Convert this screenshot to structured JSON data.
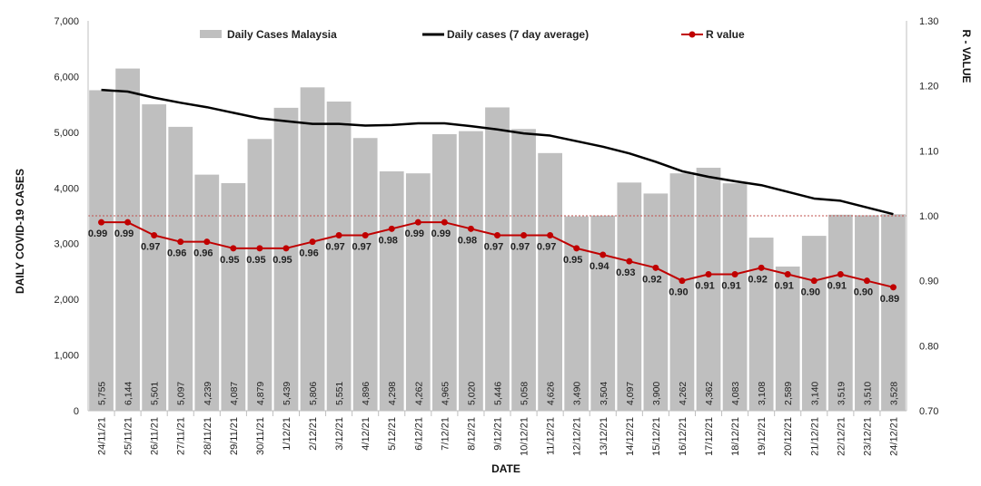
{
  "chart_data": {
    "type": "bar",
    "xlabel": "DATE",
    "ylabel": "DAILY COVID-19 CASES",
    "y2label": "R - VALUE",
    "ylim": [
      0,
      7000
    ],
    "y2lim": [
      0.7,
      1.3
    ],
    "y_ticks": [
      "0",
      "1,000",
      "2,000",
      "3,000",
      "4,000",
      "5,000",
      "6,000",
      "7,000"
    ],
    "y2_ticks": [
      "0.70",
      "0.80",
      "0.90",
      "1.00",
      "1.10",
      "1.20",
      "1.30"
    ],
    "legend_position": "top",
    "reference_line": 1.0,
    "colors": {
      "bars": "#bfbfbf",
      "average": "#000000",
      "r_value": "#c00000",
      "reference": "#c0504d"
    },
    "categories": [
      "24/11/21",
      "25/11/21",
      "26/11/21",
      "27/11/21",
      "28/11/21",
      "29/11/21",
      "30/11/21",
      "1/12/21",
      "2/12/21",
      "3/12/21",
      "4/12/21",
      "5/12/21",
      "6/12/21",
      "7/12/21",
      "8/12/21",
      "9/12/21",
      "10/12/21",
      "11/12/21",
      "12/12/21",
      "13/12/21",
      "14/12/21",
      "15/12/21",
      "16/12/21",
      "17/12/21",
      "18/12/21",
      "19/12/21",
      "20/12/21",
      "21/12/21",
      "22/12/21",
      "23/12/21",
      "24/12/21"
    ],
    "series": [
      {
        "name": "Daily Cases Malaysia",
        "type": "bar",
        "axis": "left",
        "values": [
          5755,
          6144,
          5501,
          5097,
          4239,
          4087,
          4879,
          5439,
          5806,
          5551,
          4896,
          4298,
          4262,
          4965,
          5020,
          5446,
          5058,
          4626,
          3490,
          3504,
          4097,
          3900,
          4262,
          4362,
          4083,
          3108,
          2589,
          3140,
          3519,
          3510,
          3528
        ],
        "labels": [
          "5,755",
          "6,144",
          "5,501",
          "5,097",
          "4,239",
          "4,087",
          "4,879",
          "5,439",
          "5,806",
          "5,551",
          "4,896",
          "4,298",
          "4,262",
          "4,965",
          "5,020",
          "5,446",
          "5,058",
          "4,626",
          "3,490",
          "3,504",
          "4,097",
          "3,900",
          "4,262",
          "4,362",
          "4,083",
          "3,108",
          "2,589",
          "3,140",
          "3,519",
          "3,510",
          "3,528"
        ]
      },
      {
        "name": "Daily cases (7 day average)",
        "type": "line",
        "axis": "left",
        "values": [
          5760,
          5730,
          5620,
          5530,
          5450,
          5350,
          5250,
          5200,
          5150,
          5150,
          5120,
          5130,
          5160,
          5160,
          5110,
          5050,
          4980,
          4940,
          4840,
          4740,
          4620,
          4470,
          4300,
          4200,
          4120,
          4050,
          3930,
          3810,
          3770,
          3650,
          3530
        ]
      },
      {
        "name": "R value",
        "type": "line",
        "axis": "right",
        "values": [
          0.99,
          0.99,
          0.97,
          0.96,
          0.96,
          0.95,
          0.95,
          0.95,
          0.96,
          0.97,
          0.97,
          0.98,
          0.99,
          0.99,
          0.98,
          0.97,
          0.97,
          0.97,
          0.95,
          0.94,
          0.93,
          0.92,
          0.9,
          0.91,
          0.91,
          0.92,
          0.91,
          0.9,
          0.91,
          0.9,
          0.89
        ],
        "labels": [
          "0.99",
          "0.99",
          "0.97",
          "0.96",
          "0.96",
          "0.95",
          "0.95",
          "0.95",
          "0.96",
          "0.97",
          "0.97",
          "0.98",
          "0.99",
          "0.99",
          "0.98",
          "0.97",
          "0.97",
          "0.97",
          "0.95",
          "0.94",
          "0.93",
          "0.92",
          "0.90",
          "0.91",
          "0.91",
          "0.92",
          "0.91",
          "0.90",
          "0.91",
          "0.90",
          "0.89"
        ]
      }
    ]
  }
}
